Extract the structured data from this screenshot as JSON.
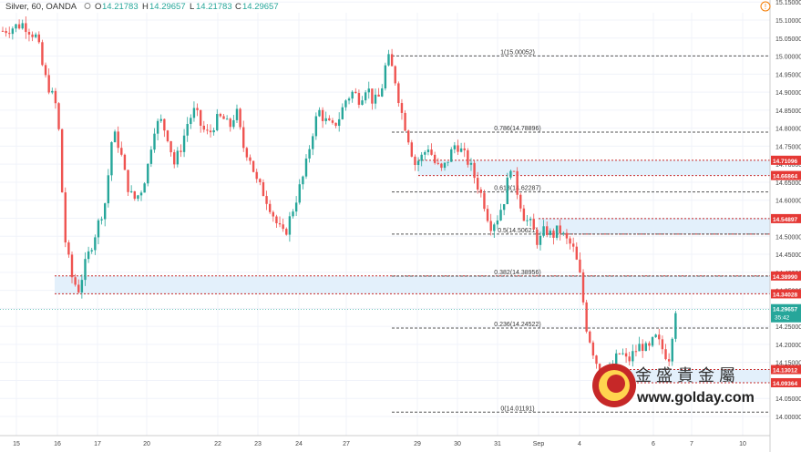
{
  "header": {
    "symbol": "Silver, 60, OANDA",
    "o_label": "O",
    "o_value": "14.21783",
    "h_label": "H",
    "h_value": "14.29657",
    "l_label": "L",
    "l_value": "14.21783",
    "c_label": "C",
    "c_value": "14.29657",
    "icon": "settings-icon"
  },
  "colors": {
    "up": "#26a69a",
    "down": "#ef5350",
    "zone": "#dbeafe",
    "tag": "#e53935",
    "price_tag": "#26a69a"
  },
  "chart_data": {
    "type": "candlestick",
    "title": "Silver, 60, OANDA",
    "xlabel": "",
    "ylabel": "",
    "ylim": [
      13.99,
      15.14
    ],
    "grid": true,
    "x_ticks": [
      "15",
      "16",
      "17",
      "20",
      "22",
      "23",
      "24",
      "27",
      "29",
      "30",
      "31",
      "Sep",
      "4",
      "6",
      "7",
      "10"
    ],
    "y_ticks": [
      "15.15000",
      "15.10000",
      "15.05000",
      "15.00000",
      "14.95000",
      "14.90000",
      "14.85000",
      "14.80000",
      "14.75000",
      "14.70000",
      "14.65000",
      "14.60000",
      "14.55000",
      "14.50000",
      "14.45000",
      "14.40000",
      "14.35000",
      "14.30000",
      "14.25000",
      "14.20000",
      "14.15000",
      "14.10000",
      "14.05000",
      "14.00000"
    ],
    "fib_levels": [
      {
        "label": "1(15.00052)",
        "value": 15.00052
      },
      {
        "label": "0.786(14.78896)",
        "value": 14.78896
      },
      {
        "label": "0.618(14.62287)",
        "value": 14.62287
      },
      {
        "label": "0.5(14.50621)",
        "value": 14.50621
      },
      {
        "label": "0.382(14.38956)",
        "value": 14.38956
      },
      {
        "label": "0.236(14.24522)",
        "value": 14.24522
      },
      {
        "label": "0(14.01191)",
        "value": 14.01191
      }
    ],
    "zones": [
      {
        "top": 14.71096,
        "bottom": 14.66864
      },
      {
        "top": 14.54897,
        "bottom": 14.50621
      },
      {
        "top": 14.3899,
        "bottom": 14.34028
      },
      {
        "top": 14.13012,
        "bottom": 14.09364
      }
    ],
    "price_tags": [
      "14.71096",
      "14.66864",
      "14.54897",
      "14.38990",
      "14.34028",
      "14.13012",
      "14.09364"
    ],
    "last_price": "14.29657",
    "countdown": "35:42",
    "path": [
      [
        0,
        15.07
      ],
      [
        3,
        15.09
      ],
      [
        5,
        15.05
      ],
      [
        6,
        14.95
      ],
      [
        8,
        14.85
      ],
      [
        9,
        14.5
      ],
      [
        10,
        14.39
      ],
      [
        11,
        14.35
      ],
      [
        12,
        14.42
      ],
      [
        13,
        14.48
      ],
      [
        15,
        14.6
      ],
      [
        16,
        14.79
      ],
      [
        17,
        14.75
      ],
      [
        18,
        14.65
      ],
      [
        19,
        14.6
      ],
      [
        20,
        14.62
      ],
      [
        21,
        14.68
      ],
      [
        22,
        14.8
      ],
      [
        23,
        14.82
      ],
      [
        24,
        14.78
      ],
      [
        25,
        14.7
      ],
      [
        26,
        14.75
      ],
      [
        27,
        14.82
      ],
      [
        28,
        14.85
      ],
      [
        29,
        14.8
      ],
      [
        30,
        14.78
      ],
      [
        31,
        14.82
      ],
      [
        32,
        14.83
      ],
      [
        33,
        14.8
      ],
      [
        34,
        14.85
      ],
      [
        35,
        14.75
      ],
      [
        36,
        14.72
      ],
      [
        37,
        14.65
      ],
      [
        38,
        14.62
      ],
      [
        39,
        14.58
      ],
      [
        40,
        14.53
      ],
      [
        41,
        14.5
      ],
      [
        42,
        14.56
      ],
      [
        43,
        14.62
      ],
      [
        44,
        14.68
      ],
      [
        45,
        14.78
      ],
      [
        46,
        14.85
      ],
      [
        47,
        14.82
      ],
      [
        48,
        14.8
      ],
      [
        49,
        14.83
      ],
      [
        50,
        14.88
      ],
      [
        51,
        14.9
      ],
      [
        52,
        14.88
      ],
      [
        53,
        14.92
      ],
      [
        54,
        14.87
      ],
      [
        55,
        14.89
      ],
      [
        56,
        15.0
      ],
      [
        57,
        14.95
      ],
      [
        58,
        14.85
      ],
      [
        59,
        14.78
      ],
      [
        60,
        14.7
      ],
      [
        61,
        14.72
      ],
      [
        62,
        14.75
      ],
      [
        63,
        14.7
      ],
      [
        64,
        14.68
      ],
      [
        65,
        14.72
      ],
      [
        66,
        14.76
      ],
      [
        67,
        14.73
      ],
      [
        68,
        14.7
      ],
      [
        69,
        14.65
      ],
      [
        70,
        14.6
      ],
      [
        71,
        14.53
      ],
      [
        72,
        14.55
      ],
      [
        73,
        14.6
      ],
      [
        74,
        14.7
      ],
      [
        75,
        14.62
      ],
      [
        76,
        14.55
      ],
      [
        77,
        14.53
      ],
      [
        78,
        14.48
      ],
      [
        79,
        14.52
      ],
      [
        80,
        14.5
      ],
      [
        81,
        14.52
      ],
      [
        82,
        14.49
      ],
      [
        83,
        14.47
      ],
      [
        84,
        14.4
      ],
      [
        85,
        14.25
      ],
      [
        86,
        14.18
      ],
      [
        87,
        14.12
      ],
      [
        88,
        14.1
      ],
      [
        89,
        14.15
      ],
      [
        90,
        14.18
      ],
      [
        91,
        14.15
      ],
      [
        92,
        14.18
      ],
      [
        93,
        14.2
      ],
      [
        94,
        14.18
      ],
      [
        95,
        14.22
      ],
      [
        96,
        14.19
      ],
      [
        97,
        14.16
      ],
      [
        98,
        14.3
      ]
    ]
  },
  "watermark": {
    "logo_text": "金盛貴金屬",
    "url": "www.golday.com"
  }
}
